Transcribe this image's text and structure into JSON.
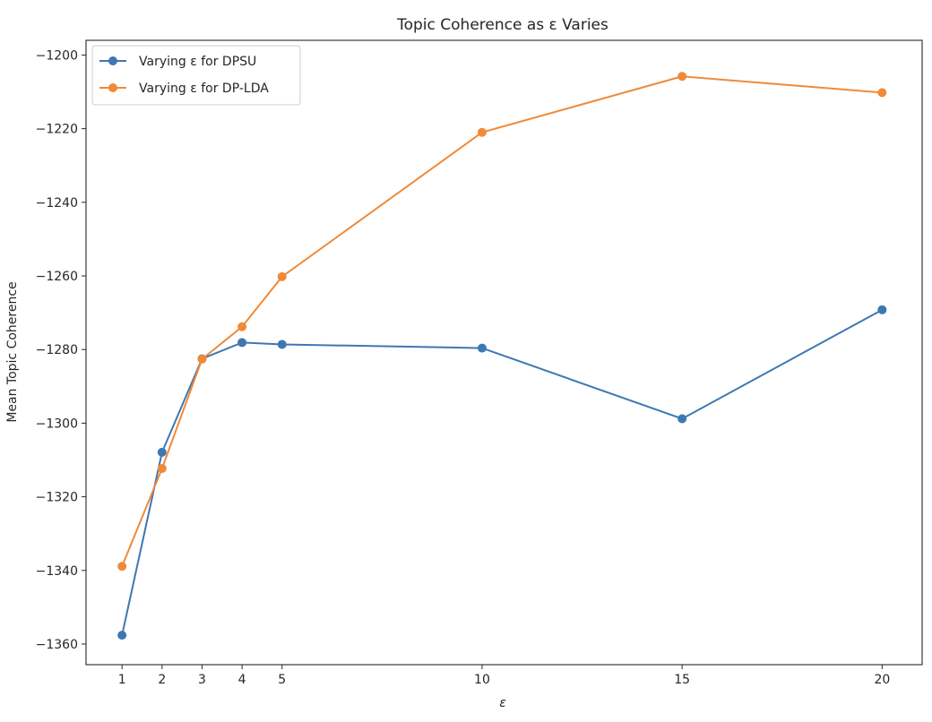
{
  "chart_data": {
    "type": "line",
    "title": "Topic Coherence as ε Varies",
    "xlabel": "ε",
    "ylabel": "Mean Topic Coherence",
    "x": [
      1,
      2,
      3,
      4,
      5,
      10,
      15,
      20
    ],
    "xticks": [
      "1",
      "2",
      "3",
      "4",
      "5",
      "10",
      "15",
      "20"
    ],
    "xlim": [
      0.1,
      21.0
    ],
    "ylim": [
      -1365.6,
      -1196.0
    ],
    "yticks": [
      "−1200",
      "−1220",
      "−1240",
      "−1260",
      "−1280",
      "−1300",
      "−1320",
      "−1340",
      "−1360"
    ],
    "grid": false,
    "legend_position": "top-left",
    "marker": "circle",
    "series": [
      {
        "name": "Varying ε for DPSU",
        "color": "#3d78b2",
        "values": [
          -1357.6,
          -1307.9,
          -1282.5,
          -1278.1,
          -1278.6,
          -1279.6,
          -1298.8,
          -1269.2
        ]
      },
      {
        "name": "Varying ε for DP-LDA",
        "color": "#f08a38",
        "values": [
          -1338.9,
          -1312.3,
          -1282.6,
          -1273.8,
          -1260.2,
          -1221.0,
          -1205.8,
          -1210.2
        ]
      }
    ]
  }
}
